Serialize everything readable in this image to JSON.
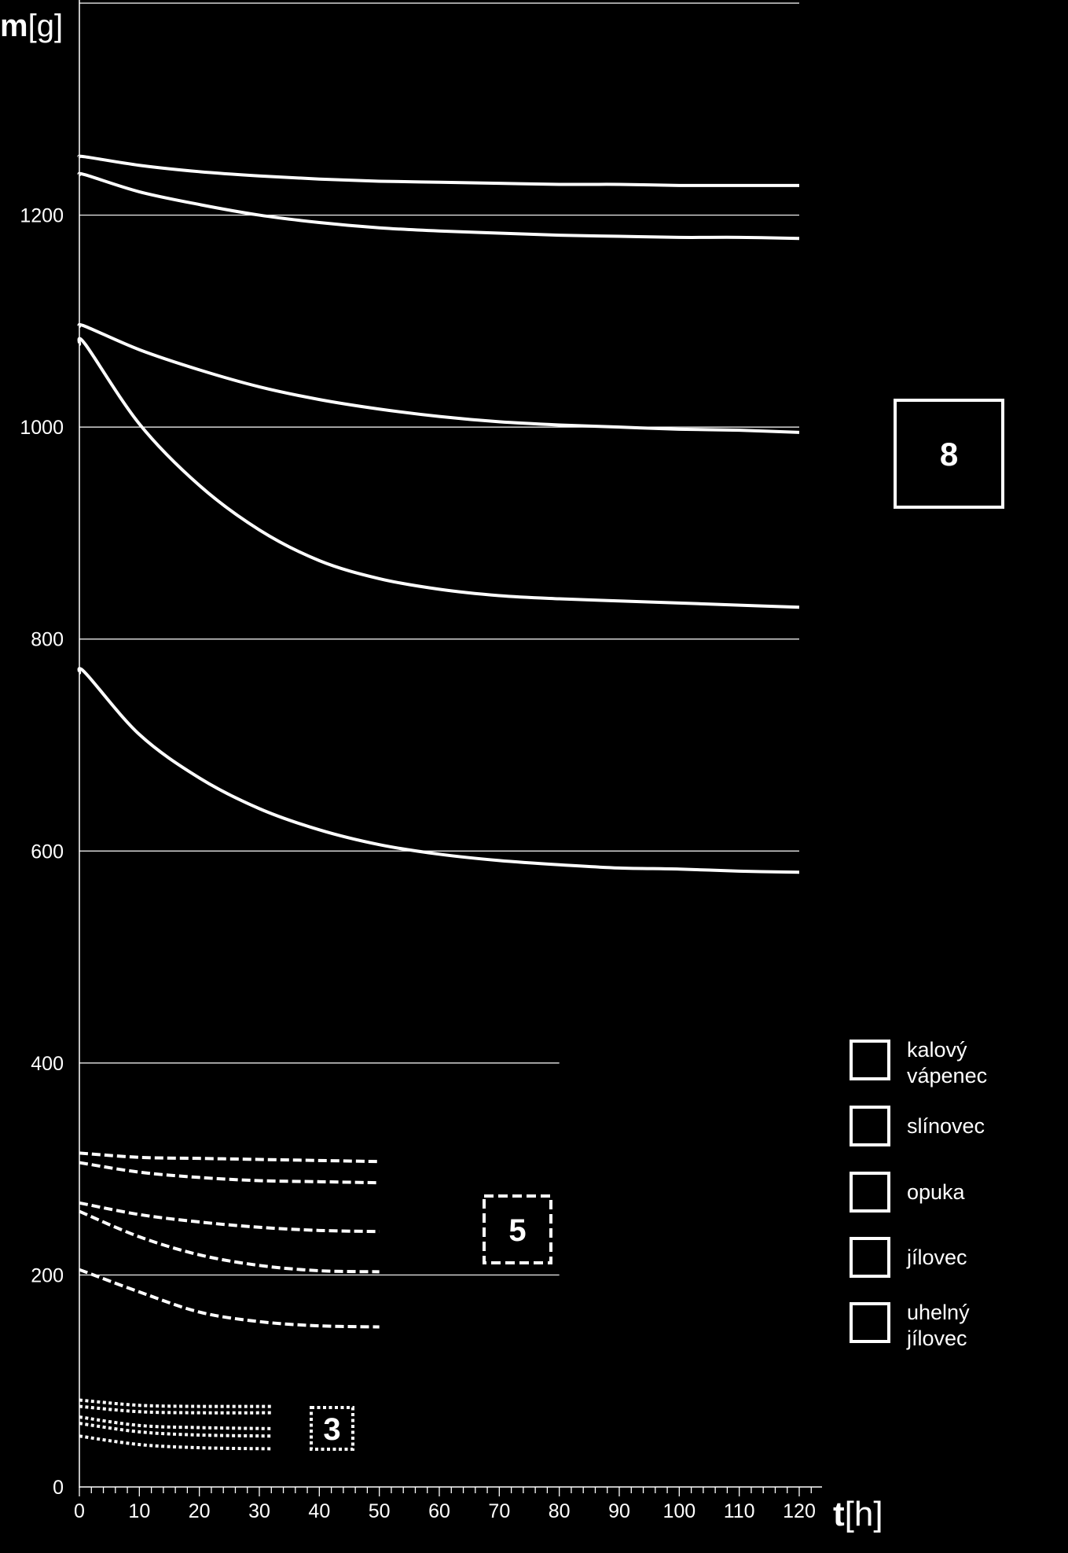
{
  "chart_data": {
    "type": "line",
    "xlabel": {
      "bold": "t",
      "unit": "[h]"
    },
    "ylabel": {
      "bold": "m",
      "unit": "[g]"
    },
    "xlim": [
      0,
      120
    ],
    "ylim": [
      0,
      1400
    ],
    "x_ticks": [
      0,
      10,
      20,
      30,
      40,
      50,
      60,
      70,
      80,
      90,
      100,
      110,
      120
    ],
    "y_ticks": [
      0,
      200,
      400,
      600,
      800,
      1000,
      1200
    ],
    "gridlines": [
      {
        "y": 1400,
        "x_end": 120
      },
      {
        "y": 1200,
        "x_end": 120
      },
      {
        "y": 1000,
        "x_end": 120
      },
      {
        "y": 800,
        "x_end": 120
      },
      {
        "y": 600,
        "x_end": 120
      },
      {
        "y": 400,
        "x_end": 80
      },
      {
        "y": 200,
        "x_end": 80
      }
    ],
    "series": [
      {
        "group": "8",
        "style": "solid",
        "x": [
          0,
          1,
          10,
          20,
          30,
          40,
          50,
          60,
          70,
          80,
          90,
          100,
          110,
          120
        ],
        "values": [
          1255,
          1255,
          1247,
          1241,
          1237,
          1234,
          1232,
          1231,
          1230,
          1229,
          1229,
          1228,
          1228,
          1228
        ]
      },
      {
        "group": "8",
        "style": "solid",
        "x": [
          0,
          1,
          10,
          20,
          30,
          40,
          50,
          60,
          70,
          80,
          90,
          100,
          110,
          120
        ],
        "values": [
          1238,
          1238,
          1222,
          1210,
          1200,
          1193,
          1188,
          1185,
          1183,
          1181,
          1180,
          1179,
          1179,
          1178
        ]
      },
      {
        "group": "8",
        "style": "solid",
        "x": [
          0,
          1,
          10,
          20,
          30,
          40,
          50,
          60,
          70,
          80,
          90,
          100,
          110,
          120
        ],
        "values": [
          1095,
          1095,
          1073,
          1054,
          1038,
          1026,
          1017,
          1010,
          1005,
          1002,
          1000,
          998,
          997,
          995
        ]
      },
      {
        "group": "8",
        "style": "solid",
        "x": [
          0,
          1,
          10,
          20,
          30,
          40,
          50,
          60,
          70,
          80,
          90,
          100,
          110,
          120
        ],
        "values": [
          1078,
          1078,
          1003,
          945,
          903,
          874,
          857,
          847,
          841,
          838,
          836,
          834,
          832,
          830
        ]
      },
      {
        "group": "8",
        "style": "solid",
        "x": [
          0,
          1,
          10,
          20,
          30,
          40,
          50,
          60,
          70,
          80,
          90,
          100,
          110,
          120
        ],
        "values": [
          768,
          768,
          710,
          669,
          640,
          620,
          606,
          597,
          591,
          587,
          584,
          583,
          581,
          580
        ]
      },
      {
        "group": "5",
        "style": "dashed",
        "x": [
          0,
          10,
          20,
          30,
          40,
          50
        ],
        "values": [
          315,
          311,
          310,
          309,
          308,
          307
        ]
      },
      {
        "group": "5",
        "style": "dashed",
        "x": [
          0,
          10,
          20,
          30,
          40,
          50
        ],
        "values": [
          306,
          297,
          292,
          289,
          288,
          287
        ]
      },
      {
        "group": "5",
        "style": "dashed",
        "x": [
          0,
          10,
          20,
          30,
          40,
          50
        ],
        "values": [
          268,
          257,
          250,
          245,
          242,
          241
        ]
      },
      {
        "group": "5",
        "style": "dashed",
        "x": [
          0,
          10,
          20,
          30,
          40,
          50
        ],
        "values": [
          260,
          236,
          219,
          209,
          204,
          203
        ]
      },
      {
        "group": "5",
        "style": "dashed",
        "x": [
          0,
          10,
          20,
          30,
          40,
          50
        ],
        "values": [
          205,
          184,
          165,
          156,
          152,
          151
        ]
      },
      {
        "group": "3",
        "style": "dotted",
        "x": [
          0,
          10,
          20,
          32
        ],
        "values": [
          82,
          77,
          76,
          76
        ]
      },
      {
        "group": "3",
        "style": "dotted",
        "x": [
          0,
          10,
          20,
          32
        ],
        "values": [
          76,
          71,
          70,
          70
        ]
      },
      {
        "group": "3",
        "style": "dotted",
        "x": [
          0,
          10,
          20,
          32
        ],
        "values": [
          66,
          58,
          56,
          55
        ]
      },
      {
        "group": "3",
        "style": "dotted",
        "x": [
          0,
          10,
          20,
          32
        ],
        "values": [
          60,
          52,
          49,
          48
        ]
      },
      {
        "group": "3",
        "style": "dotted",
        "x": [
          0,
          10,
          20,
          32
        ],
        "values": [
          48,
          40,
          37,
          36
        ]
      }
    ],
    "group_labels": [
      {
        "text": "8",
        "style": "solid"
      },
      {
        "text": "5",
        "style": "dashed"
      },
      {
        "text": "3",
        "style": "dotted"
      }
    ],
    "legend": {
      "position": "right",
      "entries": [
        {
          "line1": "kalový",
          "line2": "vápenec"
        },
        {
          "line1": "slínovec",
          "line2": ""
        },
        {
          "line1": "opuka",
          "line2": ""
        },
        {
          "line1": "jílovec",
          "line2": ""
        },
        {
          "line1": "uhelný",
          "line2": "jílovec"
        }
      ]
    },
    "colors": {
      "background": "#000000",
      "foreground": "#ffffff"
    }
  }
}
